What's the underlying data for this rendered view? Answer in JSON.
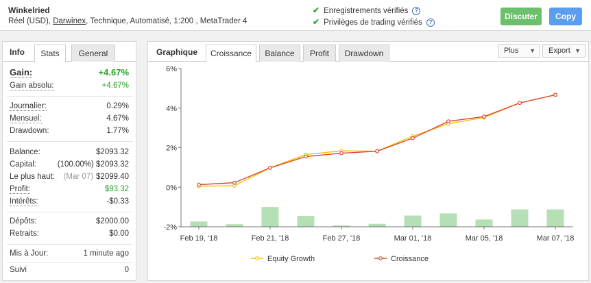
{
  "header": {
    "system_name": "Winkelried",
    "meta_prefix": "Réel (USD), ",
    "meta_link": "Darwinex",
    "meta_suffix": ", Technique, Automatisé, 1:200 , MetaTrader 4",
    "verified_track": "Enregistrements vérifiés",
    "verified_privileges": "Privilèges de trading vérifiés",
    "help_glyph": "?",
    "check_glyph": "✔",
    "discuss_label": "Discuter",
    "copy_label": "Copy"
  },
  "left_panel": {
    "title": "Info",
    "tabs": [
      "Stats",
      "General"
    ],
    "active_tab": "Stats",
    "gain": {
      "label": "Gain:",
      "value": "+4.67%"
    },
    "gain_absolu": {
      "label": "Gain absolu:",
      "value": "+4.67%"
    },
    "journalier": {
      "label": "Journalier:",
      "value": "0.29%"
    },
    "mensuel": {
      "label": "Mensuel:",
      "value": "4.67%"
    },
    "drawdown": {
      "label": "Drawdown:",
      "value": "1.77%"
    },
    "balance": {
      "label": "Balance:",
      "value": "$2093.32"
    },
    "capital": {
      "label": "Capital:",
      "sub": "(100.00%)",
      "value": "$2093.32"
    },
    "plus_haut": {
      "label": "Le plus haut:",
      "sub": "(Mar 07)",
      "value": "$2099.40"
    },
    "profit": {
      "label": "Profit:",
      "value": "$93.32"
    },
    "interets": {
      "label": "Intérêts:",
      "value": "-$0.33"
    },
    "depots": {
      "label": "Dépôts:",
      "value": "$2000.00"
    },
    "retraits": {
      "label": "Retraits:",
      "value": "$0.00"
    },
    "mis_a_jour": {
      "label": "Mis à Jour:",
      "value": "1 minute ago"
    },
    "suivi": {
      "label": "Suivi",
      "value": "0"
    }
  },
  "right_panel": {
    "title": "Graphique",
    "tabs": [
      "Croissance",
      "Balance",
      "Profit",
      "Drawdown"
    ],
    "active_tab": "Croissance",
    "plus_label": "Plus",
    "export_label": "Export",
    "caret_glyph": "▼"
  },
  "colors": {
    "green_button": "#6cbf6c",
    "blue_button": "#5b9ef0",
    "positive": "#2aa22a",
    "equity_line": "#f2c200",
    "croissance_line": "#e0442e",
    "volume_bar": "#b5dfb5"
  },
  "chart_data": {
    "type": "line",
    "title": "",
    "xlabel": "",
    "ylabel": "",
    "ylim": [
      -2,
      6
    ],
    "yticks": [
      -2,
      0,
      2,
      4,
      6
    ],
    "ytick_labels": [
      "-2%",
      "0%",
      "2%",
      "4%",
      "6%"
    ],
    "grid": "none",
    "legend": "bottom",
    "x": [
      "Feb 19, '18",
      "Feb 20, '18",
      "Feb 21, '18",
      "Feb 22, '18",
      "Feb 27, '18",
      "Feb 28, '18",
      "Mar 01, '18",
      "Mar 02, '18",
      "Mar 05, '18",
      "Mar 06, '18",
      "Mar 07, '18"
    ],
    "xtick_labels": [
      "Feb 19, '18",
      "Feb 21, '18",
      "Feb 27, '18",
      "Mar 01, '18",
      "Mar 05, '18",
      "Mar 07, '18"
    ],
    "series": [
      {
        "name": "Equity Growth",
        "values": [
          0.05,
          0.08,
          0.98,
          1.65,
          1.84,
          1.82,
          2.58,
          3.21,
          3.52,
          4.26,
          4.67
        ]
      },
      {
        "name": "Croissance",
        "values": [
          0.13,
          0.23,
          0.98,
          1.55,
          1.72,
          1.82,
          2.48,
          3.33,
          3.57,
          4.26,
          4.67
        ]
      }
    ],
    "bars": [
      -1.73,
      -1.87,
      -1.0,
      -1.45,
      -1.93,
      -1.85,
      -1.43,
      -1.32,
      -1.63,
      -1.12,
      -1.12
    ]
  }
}
